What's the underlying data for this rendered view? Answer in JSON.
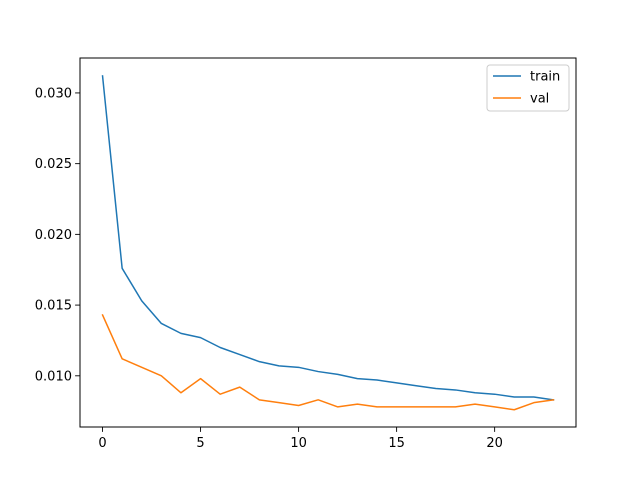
{
  "chart_data": {
    "type": "line",
    "title": "",
    "xlabel": "",
    "ylabel": "",
    "xlim": [
      -1.15,
      24.15
    ],
    "ylim": [
      0.00638,
      0.03247
    ],
    "x": [
      0,
      1,
      2,
      3,
      4,
      5,
      6,
      7,
      8,
      9,
      10,
      11,
      12,
      13,
      14,
      15,
      16,
      17,
      18,
      19,
      20,
      21,
      22,
      23
    ],
    "xticks": [
      0,
      5,
      10,
      15,
      20
    ],
    "xtick_labels": [
      "0",
      "5",
      "10",
      "15",
      "20"
    ],
    "yticks": [
      0.01,
      0.015,
      0.02,
      0.025,
      0.03
    ],
    "ytick_labels": [
      "0.010",
      "0.015",
      "0.020",
      "0.025",
      "0.030"
    ],
    "grid": false,
    "legend_position": "top-right",
    "series": [
      {
        "name": "train",
        "color": "#1f77b4",
        "values": [
          0.0312,
          0.0176,
          0.0153,
          0.0137,
          0.013,
          0.0127,
          0.012,
          0.0115,
          0.011,
          0.0107,
          0.0106,
          0.0103,
          0.0101,
          0.0098,
          0.0097,
          0.0095,
          0.0093,
          0.0091,
          0.009,
          0.0088,
          0.0087,
          0.0085,
          0.0085,
          0.0083
        ]
      },
      {
        "name": "val",
        "color": "#ff7f0e",
        "values": [
          0.0143,
          0.0112,
          0.0106,
          0.01,
          0.0088,
          0.0098,
          0.0087,
          0.0092,
          0.0083,
          0.0081,
          0.0079,
          0.0083,
          0.0078,
          0.008,
          0.0078,
          0.0078,
          0.0078,
          0.0078,
          0.0078,
          0.008,
          0.0078,
          0.0076,
          0.0081,
          0.0083
        ]
      }
    ]
  }
}
